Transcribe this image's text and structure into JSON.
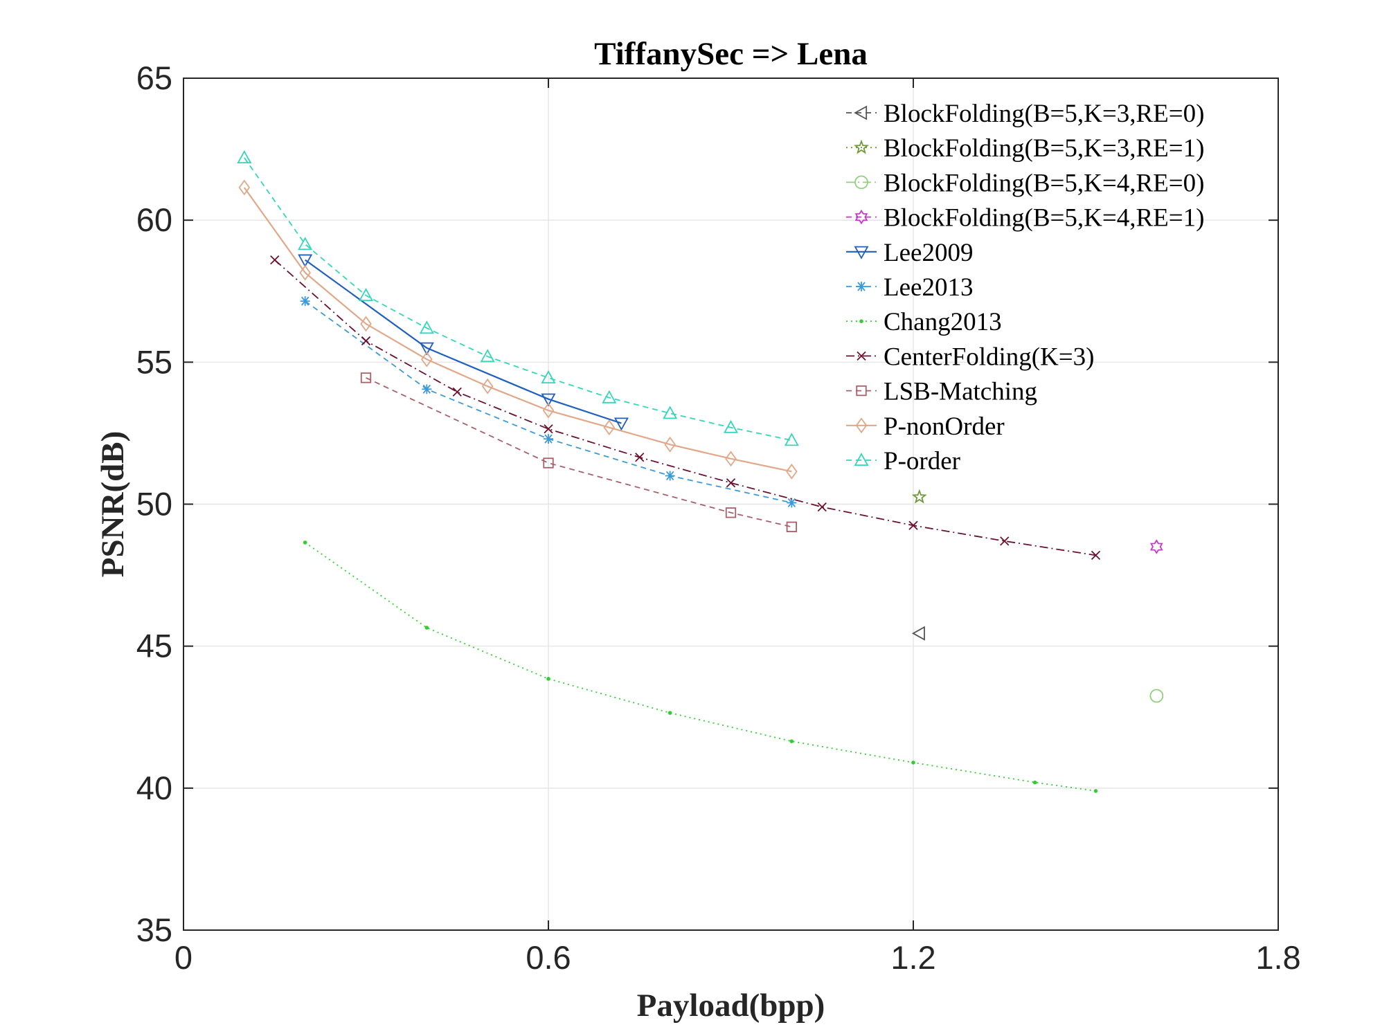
{
  "chart_data": {
    "type": "line",
    "title": "TiffanySec => Lena",
    "xlabel": "Payload(bpp)",
    "ylabel": "PSNR(dB)",
    "xlim": [
      0,
      1.8
    ],
    "ylim": [
      35,
      65
    ],
    "xticks": [
      0,
      0.6,
      1.2,
      1.8
    ],
    "xtick_labels": [
      "0",
      "0.6",
      "1.2",
      "1.8"
    ],
    "yticks": [
      35,
      40,
      45,
      50,
      55,
      60,
      65
    ],
    "ytick_labels": [
      "35",
      "40",
      "45",
      "50",
      "55",
      "60",
      "65"
    ],
    "grid": true,
    "legend_position": "top-right",
    "series": [
      {
        "name": "BlockFolding(B=5,K=3,RE=0)",
        "color": "#555555",
        "dash": "8,6",
        "marker": "triangle-left",
        "x": [
          1.21
        ],
        "y": [
          45.45
        ]
      },
      {
        "name": "BlockFolding(B=5,K=3,RE=1)",
        "color": "#6f9a3a",
        "dash": "2,5",
        "marker": "pentagram",
        "x": [
          1.21
        ],
        "y": [
          50.25
        ]
      },
      {
        "name": "BlockFolding(B=5,K=4,RE=0)",
        "color": "#8fd07a",
        "dash": "12,5,2,5",
        "marker": "circle",
        "x": [
          1.6
        ],
        "y": [
          43.25
        ]
      },
      {
        "name": "BlockFolding(B=5,K=4,RE=1)",
        "color": "#cc33cc",
        "dash": "8,6",
        "marker": "hexagram",
        "x": [
          1.6
        ],
        "y": [
          48.5
        ]
      },
      {
        "name": "Lee2009",
        "color": "#1f5fbf",
        "dash": "",
        "marker": "triangle-down",
        "x": [
          0.2,
          0.4,
          0.6,
          0.72
        ],
        "y": [
          58.6,
          55.5,
          53.7,
          52.85
        ]
      },
      {
        "name": "Lee2013",
        "color": "#3a9ad9",
        "dash": "8,6",
        "marker": "asterisk",
        "x": [
          0.2,
          0.4,
          0.6,
          0.8,
          1.0
        ],
        "y": [
          57.15,
          54.05,
          52.3,
          51.0,
          50.05
        ]
      },
      {
        "name": "Chang2013",
        "color": "#33cc33",
        "dash": "2,5",
        "marker": "point",
        "x": [
          0.2,
          0.4,
          0.6,
          0.8,
          1.0,
          1.2,
          1.4,
          1.5
        ],
        "y": [
          48.65,
          45.65,
          43.85,
          42.65,
          41.65,
          40.9,
          40.2,
          39.9
        ]
      },
      {
        "name": "CenterFolding(K=3)",
        "color": "#6b1030",
        "dash": "12,5,2,5",
        "marker": "x",
        "x": [
          0.15,
          0.3,
          0.45,
          0.6,
          0.75,
          0.9,
          1.05,
          1.2,
          1.35,
          1.5
        ],
        "y": [
          58.6,
          55.75,
          53.95,
          52.65,
          51.65,
          50.75,
          49.9,
          49.25,
          48.7,
          48.2
        ]
      },
      {
        "name": "LSB-Matching",
        "color": "#a86068",
        "dash": "8,6",
        "marker": "square",
        "x": [
          0.3,
          0.6,
          0.9,
          1.0
        ],
        "y": [
          54.45,
          51.45,
          49.7,
          49.2
        ]
      },
      {
        "name": "P-nonOrder",
        "color": "#e0a888",
        "dash": "",
        "marker": "diamond",
        "x": [
          0.1,
          0.2,
          0.3,
          0.4,
          0.5,
          0.6,
          0.7,
          0.8,
          0.9,
          1.0
        ],
        "y": [
          61.15,
          58.15,
          56.35,
          55.1,
          54.15,
          53.3,
          52.7,
          52.1,
          51.6,
          51.15
        ]
      },
      {
        "name": "P-order",
        "color": "#33d6b8",
        "dash": "8,6",
        "marker": "triangle-up",
        "x": [
          0.1,
          0.2,
          0.3,
          0.4,
          0.5,
          0.6,
          0.7,
          0.8,
          0.9,
          1.0
        ],
        "y": [
          62.2,
          59.15,
          57.35,
          56.2,
          55.2,
          54.45,
          53.75,
          53.2,
          52.7,
          52.25
        ]
      }
    ]
  }
}
